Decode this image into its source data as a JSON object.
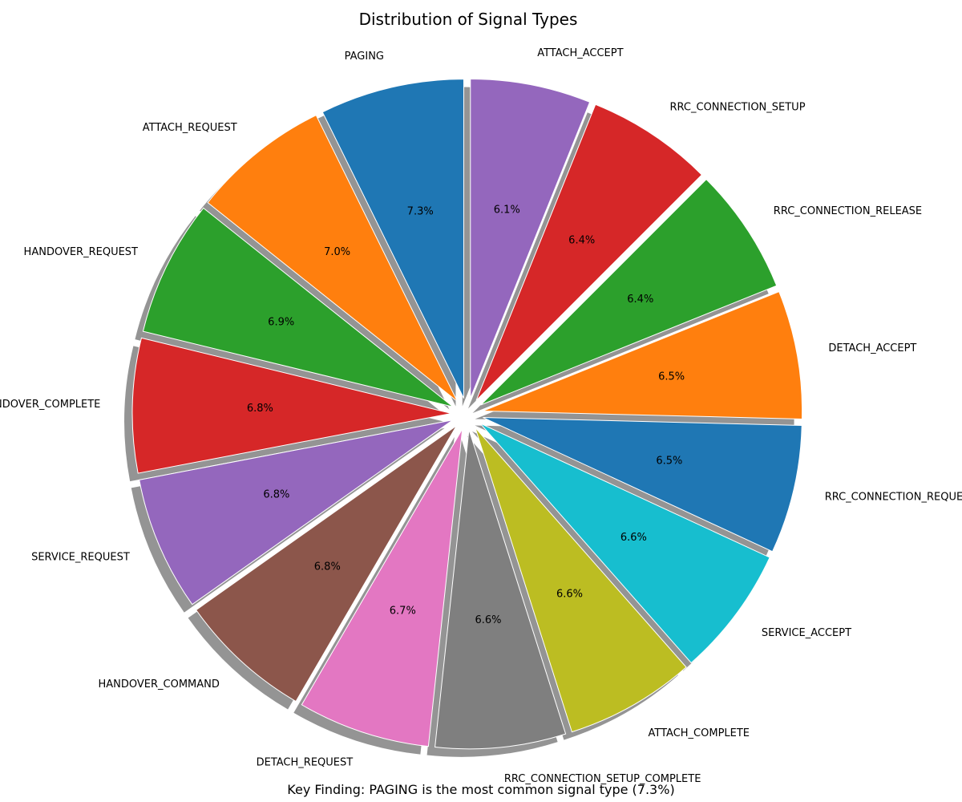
{
  "chart_data": {
    "type": "pie",
    "title": "Distribution of Signal Types",
    "footnote": "Key Finding: PAGING is the most common signal type (7.3%)",
    "start": "top",
    "direction": "counterclockwise",
    "exploded": true,
    "shadow": true,
    "slices": [
      {
        "label": "PAGING",
        "value": 7.3,
        "pct_label": "7.3%",
        "color": "#1f77b4"
      },
      {
        "label": "ATTACH_REQUEST",
        "value": 7.0,
        "pct_label": "7.0%",
        "color": "#ff7f0e"
      },
      {
        "label": "HANDOVER_REQUEST",
        "value": 6.9,
        "pct_label": "6.9%",
        "color": "#2ca02c"
      },
      {
        "label": "HANDOVER_COMPLETE",
        "value": 6.8,
        "pct_label": "6.8%",
        "color": "#d62728"
      },
      {
        "label": "SERVICE_REQUEST",
        "value": 6.8,
        "pct_label": "6.8%",
        "color": "#9467bd"
      },
      {
        "label": "HANDOVER_COMMAND",
        "value": 6.8,
        "pct_label": "6.8%",
        "color": "#8c564b"
      },
      {
        "label": "DETACH_REQUEST",
        "value": 6.7,
        "pct_label": "6.7%",
        "color": "#e377c2"
      },
      {
        "label": "RRC_CONNECTION_SETUP_COMPLETE",
        "value": 6.6,
        "pct_label": "6.6%",
        "color": "#7f7f7f"
      },
      {
        "label": "ATTACH_COMPLETE",
        "value": 6.6,
        "pct_label": "6.6%",
        "color": "#bcbd22"
      },
      {
        "label": "SERVICE_ACCEPT",
        "value": 6.6,
        "pct_label": "6.6%",
        "color": "#17becf"
      },
      {
        "label": "RRC_CONNECTION_REQUEST",
        "value": 6.5,
        "pct_label": "6.5%",
        "color": "#1f77b4"
      },
      {
        "label": "DETACH_ACCEPT",
        "value": 6.5,
        "pct_label": "6.5%",
        "color": "#ff7f0e"
      },
      {
        "label": "RRC_CONNECTION_RELEASE",
        "value": 6.4,
        "pct_label": "6.4%",
        "color": "#2ca02c"
      },
      {
        "label": "RRC_CONNECTION_SETUP",
        "value": 6.4,
        "pct_label": "6.4%",
        "color": "#d62728"
      },
      {
        "label": "ATTACH_ACCEPT",
        "value": 6.1,
        "pct_label": "6.1%",
        "color": "#9467bd"
      }
    ]
  }
}
